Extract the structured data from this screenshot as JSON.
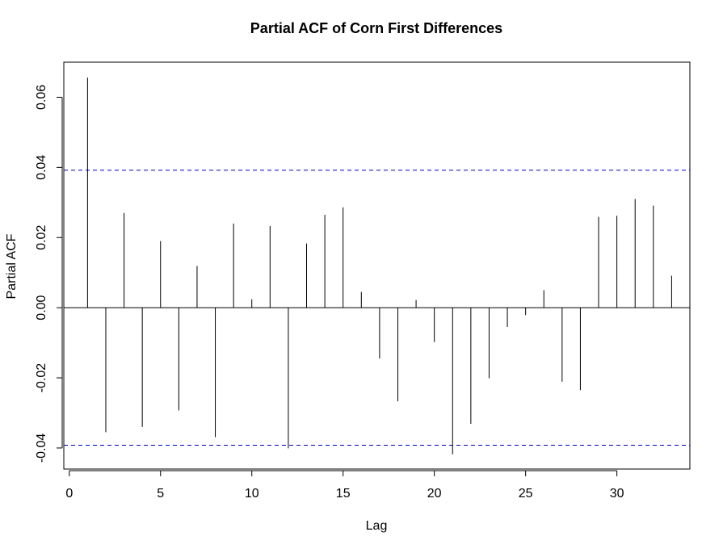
{
  "chart_data": {
    "type": "bar",
    "title": "Partial ACF of Corn First Differences",
    "xlabel": "Lag",
    "ylabel": "Partial ACF",
    "xlim": [
      -0.3,
      34
    ],
    "ylim": [
      -0.046,
      0.07
    ],
    "x_ticks": [
      0,
      5,
      10,
      15,
      20,
      25,
      30
    ],
    "x_tick_labels": [
      "0",
      "5",
      "10",
      "15",
      "20",
      "25",
      "30"
    ],
    "y_ticks": [
      -0.04,
      -0.02,
      0.0,
      0.02,
      0.04,
      0.06
    ],
    "y_tick_labels": [
      "-0.04",
      "-0.02",
      "0.00",
      "0.02",
      "0.04",
      "0.06"
    ],
    "confidence_bounds": [
      0.0392,
      -0.0392
    ],
    "confidence_color": "#0000cd",
    "lags": [
      1,
      2,
      3,
      4,
      5,
      6,
      7,
      8,
      9,
      10,
      11,
      12,
      13,
      14,
      15,
      16,
      17,
      18,
      19,
      20,
      21,
      22,
      23,
      24,
      25,
      26,
      27,
      28,
      29,
      30,
      31,
      32,
      33
    ],
    "values": [
      0.0656,
      -0.0355,
      0.027,
      -0.034,
      0.019,
      -0.0293,
      0.0119,
      -0.0369,
      0.024,
      0.0024,
      0.0233,
      -0.0401,
      0.0183,
      0.0265,
      0.0286,
      0.0045,
      -0.0145,
      -0.0267,
      0.0022,
      -0.0098,
      -0.0418,
      -0.0331,
      -0.0201,
      -0.0055,
      -0.0021,
      0.005,
      -0.0211,
      -0.0235,
      0.0259,
      0.0262,
      0.031,
      0.0291,
      0.0091
    ],
    "grid": false
  }
}
